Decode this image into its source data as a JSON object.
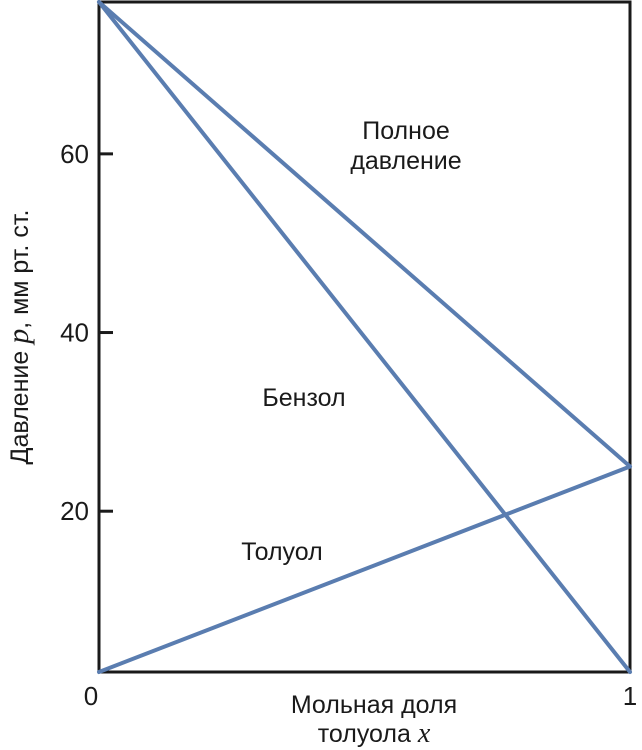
{
  "chart_data": {
    "type": "line",
    "title": "",
    "xlabel_line1": "Мольная доля",
    "xlabel_line2_prefix": "толуола ",
    "xlabel_var": "x",
    "ylabel_prefix": "Давление ",
    "ylabel_var": "p",
    "ylabel_suffix": ", мм рт. ст.",
    "xlim": [
      0,
      1
    ],
    "ylim": [
      2,
      77
    ],
    "x_ticks": [
      0,
      1
    ],
    "x_tick_labels": [
      "0",
      "1"
    ],
    "y_ticks": [
      20,
      40,
      60
    ],
    "y_tick_labels": [
      "20",
      "40",
      "60"
    ],
    "grid": false,
    "series": [
      {
        "name": "Полное давление",
        "x": [
          0,
          1
        ],
        "y": [
          77,
          25
        ]
      },
      {
        "name": "Бензол",
        "x": [
          0,
          1
        ],
        "y": [
          77,
          2
        ]
      },
      {
        "name": "Толуол",
        "x": [
          0,
          1
        ],
        "y": [
          2,
          25
        ]
      }
    ],
    "annotations": {
      "total_line1": "Полное",
      "total_line2": "давление",
      "benzene": "Бензол",
      "toluene": "Толуол"
    },
    "line_color": "#5a7db0"
  }
}
